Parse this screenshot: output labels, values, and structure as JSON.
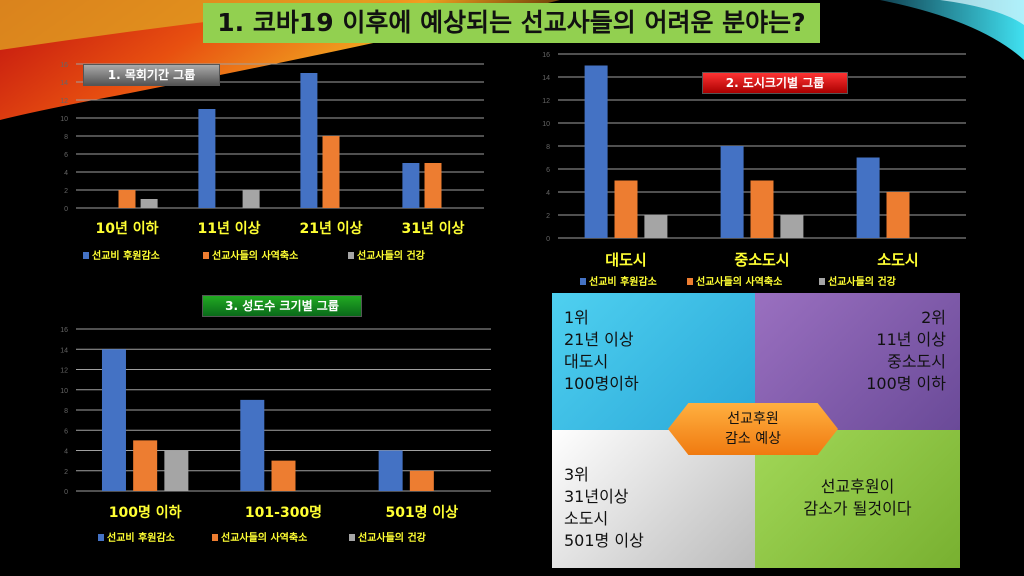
{
  "title": "1. 코바19 이후에 예상되는 선교사들의 어려운 분야는?",
  "colors": {
    "series": [
      "#4472c4",
      "#ed7d31",
      "#a5a5a5"
    ],
    "label": "#ffff33",
    "grid": "#a0a0a0"
  },
  "chart_data": [
    {
      "type": "bar",
      "title": "1. 목회기간 그룹",
      "categories": [
        "10년 이하",
        "11년 이상",
        "21년 이상",
        "31년 이상"
      ],
      "series": [
        {
          "name": "선교비 후원감소",
          "values": [
            0,
            11,
            15,
            5
          ]
        },
        {
          "name": "선교사들의 사역축소",
          "values": [
            2,
            0,
            8,
            5
          ]
        },
        {
          "name": "선교사들의 건강",
          "values": [
            1,
            2,
            0,
            0
          ]
        }
      ],
      "ylim": [
        0,
        16
      ],
      "yticks": [
        0,
        2,
        4,
        6,
        8,
        10,
        12,
        14,
        16
      ],
      "grid": true,
      "legend": "bottom"
    },
    {
      "type": "bar",
      "title": "2. 도시크기별 그룹",
      "categories": [
        "대도시",
        "중소도시",
        "소도시"
      ],
      "series": [
        {
          "name": "선교비 후원감소",
          "values": [
            15,
            8,
            7
          ]
        },
        {
          "name": "선교사들의 사역축소",
          "values": [
            5,
            5,
            4
          ]
        },
        {
          "name": "선교사들의 건강",
          "values": [
            2,
            2,
            0
          ]
        }
      ],
      "ylim": [
        0,
        16
      ],
      "yticks": [
        0,
        2,
        4,
        6,
        8,
        10,
        12,
        14,
        16
      ],
      "grid": true,
      "legend": "bottom"
    },
    {
      "type": "bar",
      "title": "3. 성도수 크기별 그룹",
      "categories": [
        "100명 이하",
        "101-300명",
        "501명 이상"
      ],
      "series": [
        {
          "name": "선교비 후원감소",
          "values": [
            14,
            9,
            4
          ]
        },
        {
          "name": "선교사들의 사역축소",
          "values": [
            5,
            3,
            2
          ]
        },
        {
          "name": "선교사들의 건강",
          "values": [
            4,
            0,
            0
          ]
        }
      ],
      "ylim": [
        0,
        16
      ],
      "yticks": [
        0,
        2,
        4,
        6,
        8,
        10,
        12,
        14,
        16
      ],
      "grid": true,
      "legend": "bottom"
    }
  ],
  "summary": {
    "q1": [
      "1위",
      "21년 이상",
      "대도시",
      "100명이하"
    ],
    "q2": [
      "2위",
      "11년 이상",
      "중소도시",
      "100명 이하"
    ],
    "q3": [
      "3위",
      "31년이상",
      "소도시",
      "501명 이상"
    ],
    "q4": [
      "선교후원이",
      "감소가 될것이다"
    ],
    "center": [
      "선교후원",
      "감소 예상"
    ]
  }
}
